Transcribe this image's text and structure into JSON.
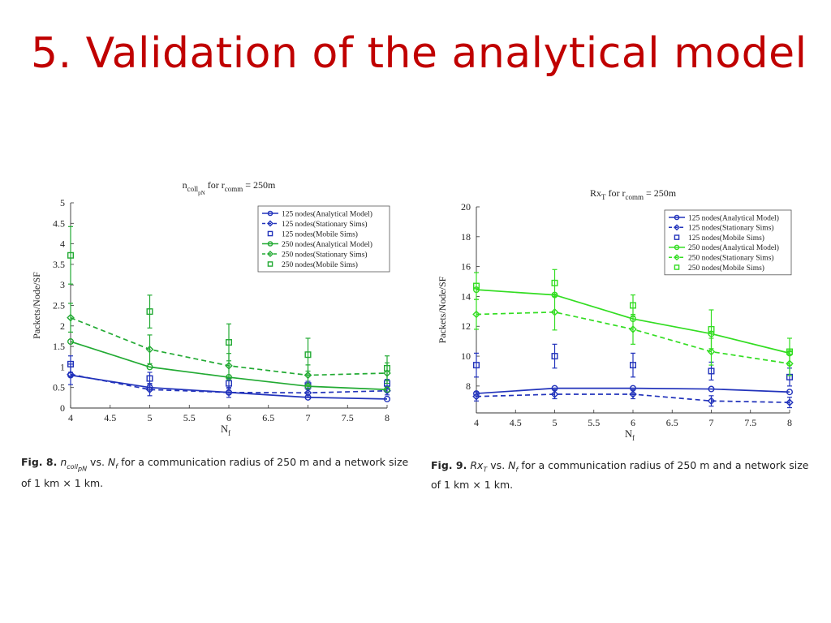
{
  "slide": {
    "title": "5. Validation of the analytical model"
  },
  "captions": [
    {
      "fig_label": "Fig. 8.",
      "sym_base": "n",
      "sym_sub": "coll",
      "sym_subsub": "pN",
      "vs_text": "vs.",
      "var_base": "N",
      "var_sub": "f",
      "rest": "for a communication radius of 250 m and a network size of 1 km × 1 km."
    },
    {
      "fig_label": "Fig. 9.",
      "sym_base": "Rx",
      "sym_sub": "T",
      "vs_text": "vs.",
      "var_base": "N",
      "var_sub": "f",
      "rest": "for a communication radius of 250 m and a network size of 1 km × 1 km."
    }
  ],
  "chart_data": [
    {
      "type": "line",
      "title_main": "n",
      "title_sub": "coll",
      "title_subsub": "pN",
      "title_mid": " for r",
      "title_r_sub": "comm",
      "title_end": " = 250m",
      "xlabel_main": "N",
      "xlabel_sub": "f",
      "ylabel": "Packets/Node/SF",
      "xlim": [
        4,
        8
      ],
      "ylim": [
        0,
        5
      ],
      "xticks": [
        4,
        4.5,
        5,
        5.5,
        6,
        6.5,
        7,
        7.5,
        8
      ],
      "xtick_labels": [
        "4",
        "4.5",
        "5",
        "5.5",
        "6",
        "6.5",
        "7",
        "7.5",
        "8"
      ],
      "yticks": [
        0,
        0.5,
        1,
        1.5,
        2,
        2.5,
        3,
        3.5,
        4,
        4.5,
        5
      ],
      "ytick_labels": [
        "0",
        "0.5",
        "1",
        "1.5",
        "2",
        "2.5",
        "3",
        "3.5",
        "4",
        "4.5",
        "5"
      ],
      "grid": false,
      "legend_position": "top-right",
      "x": [
        4,
        5,
        6,
        7,
        8
      ],
      "series": [
        {
          "name": "125 nodes(Analytical Model)",
          "color": "#2233bb",
          "dash": "solid",
          "marker": "circle",
          "values": [
            0.8,
            0.5,
            0.38,
            0.26,
            0.22
          ]
        },
        {
          "name": "125 nodes(Stationary Sims)",
          "color": "#2233bb",
          "dash": "dashed",
          "marker": "diamond",
          "values": [
            0.82,
            0.45,
            0.38,
            0.37,
            0.42
          ],
          "err": [
            0.25,
            0.15,
            0.12,
            0.1,
            0.1
          ]
        },
        {
          "name": "125 nodes(Mobile Sims)",
          "color": "#2233bb",
          "dash": "none",
          "marker": "square",
          "values": [
            1.07,
            0.72,
            0.6,
            0.55,
            0.6
          ],
          "err": [
            0.2,
            0.15,
            0.12,
            0.1,
            0.1
          ]
        },
        {
          "name": "250 nodes(Analytical Model)",
          "color": "#22aa33",
          "dash": "solid",
          "marker": "circle",
          "values": [
            1.62,
            1.0,
            0.75,
            0.53,
            0.45
          ]
        },
        {
          "name": "250 nodes(Stationary Sims)",
          "color": "#22aa33",
          "dash": "dashed",
          "marker": "diamond",
          "values": [
            2.2,
            1.43,
            1.03,
            0.8,
            0.85
          ],
          "err": [
            0.35,
            0.35,
            0.3,
            0.25,
            0.25
          ]
        },
        {
          "name": "250 nodes(Mobile Sims)",
          "color": "#22aa33",
          "dash": "none",
          "marker": "square",
          "values": [
            3.72,
            2.35,
            1.6,
            1.3,
            0.97
          ],
          "err": [
            0.7,
            0.4,
            0.45,
            0.4,
            0.3
          ]
        }
      ]
    },
    {
      "type": "line",
      "title_main": "Rx",
      "title_sub": "T",
      "title_subsub": "",
      "title_mid": " for r",
      "title_r_sub": "comm",
      "title_end": " = 250m",
      "xlabel_main": "N",
      "xlabel_sub": "f",
      "ylabel": "Packets/Node/SF",
      "xlim": [
        4,
        8
      ],
      "ylim": [
        6.2,
        20
      ],
      "xticks": [
        4,
        4.5,
        5,
        5.5,
        6,
        6.5,
        7,
        7.5,
        8
      ],
      "xtick_labels": [
        "4",
        "4.5",
        "5",
        "5.5",
        "6",
        "6.5",
        "7",
        "7.5",
        "8"
      ],
      "yticks": [
        8,
        10,
        12,
        14,
        16,
        18,
        20
      ],
      "ytick_labels": [
        "8",
        "10",
        "12",
        "14",
        "16",
        "18",
        "20"
      ],
      "grid": false,
      "legend_position": "top-right",
      "x": [
        4,
        5,
        6,
        7,
        8
      ],
      "series": [
        {
          "name": "125 nodes(Analytical Model)",
          "color": "#2233bb",
          "dash": "solid",
          "marker": "circle",
          "values": [
            7.5,
            7.85,
            7.85,
            7.8,
            7.6
          ]
        },
        {
          "name": "125 nodes(Stationary Sims)",
          "color": "#2233bb",
          "dash": "dashed",
          "marker": "diamond",
          "values": [
            7.3,
            7.45,
            7.45,
            7.0,
            6.9
          ],
          "err": [
            0.3,
            0.3,
            0.3,
            0.35,
            0.35
          ]
        },
        {
          "name": "125 nodes(Mobile Sims)",
          "color": "#2233bb",
          "dash": "none",
          "marker": "square",
          "values": [
            9.4,
            10.0,
            9.4,
            9.0,
            8.6
          ],
          "err": [
            0.8,
            0.8,
            0.8,
            0.6,
            0.6
          ]
        },
        {
          "name": "250 nodes(Analytical Model)",
          "color": "#33dd22",
          "dash": "solid",
          "marker": "circle",
          "values": [
            14.45,
            14.1,
            12.5,
            11.5,
            10.2
          ]
        },
        {
          "name": "250 nodes(Stationary Sims)",
          "color": "#33dd22",
          "dash": "dashed",
          "marker": "diamond",
          "values": [
            12.8,
            12.95,
            11.8,
            10.3,
            9.5
          ],
          "err": [
            1.0,
            1.2,
            1.0,
            0.9,
            0.8
          ]
        },
        {
          "name": "250 nodes(Mobile Sims)",
          "color": "#33dd22",
          "dash": "none",
          "marker": "square",
          "values": [
            14.7,
            14.9,
            13.4,
            11.8,
            10.3
          ],
          "err": [
            0.9,
            0.9,
            0.7,
            1.3,
            0.9
          ]
        }
      ]
    }
  ]
}
